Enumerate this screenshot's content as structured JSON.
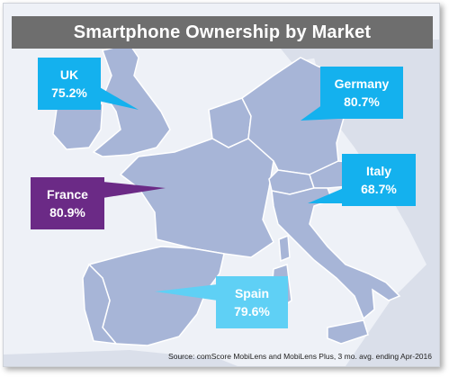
{
  "title": "Smartphone Ownership by Market",
  "colors": {
    "sea": "#eef1f7",
    "land": "#a7b5d7",
    "land_muted": "#dadfea",
    "border": "#ffffff",
    "title_bar": "#6e6e6e",
    "callout_blue": "#14b1ee",
    "callout_spain": "#5fd0f5",
    "callout_france": "#6b2a86"
  },
  "markets": [
    {
      "name": "UK",
      "value_label": "75.2%"
    },
    {
      "name": "Germany",
      "value_label": "80.7%"
    },
    {
      "name": "Italy",
      "value_label": "68.7%"
    },
    {
      "name": "France",
      "value_label": "80.9%"
    },
    {
      "name": "Spain",
      "value_label": "79.6%"
    }
  ],
  "source": "Source: comScore MobiLens and MobiLens Plus, 3 mo. avg. ending Apr-2016"
}
